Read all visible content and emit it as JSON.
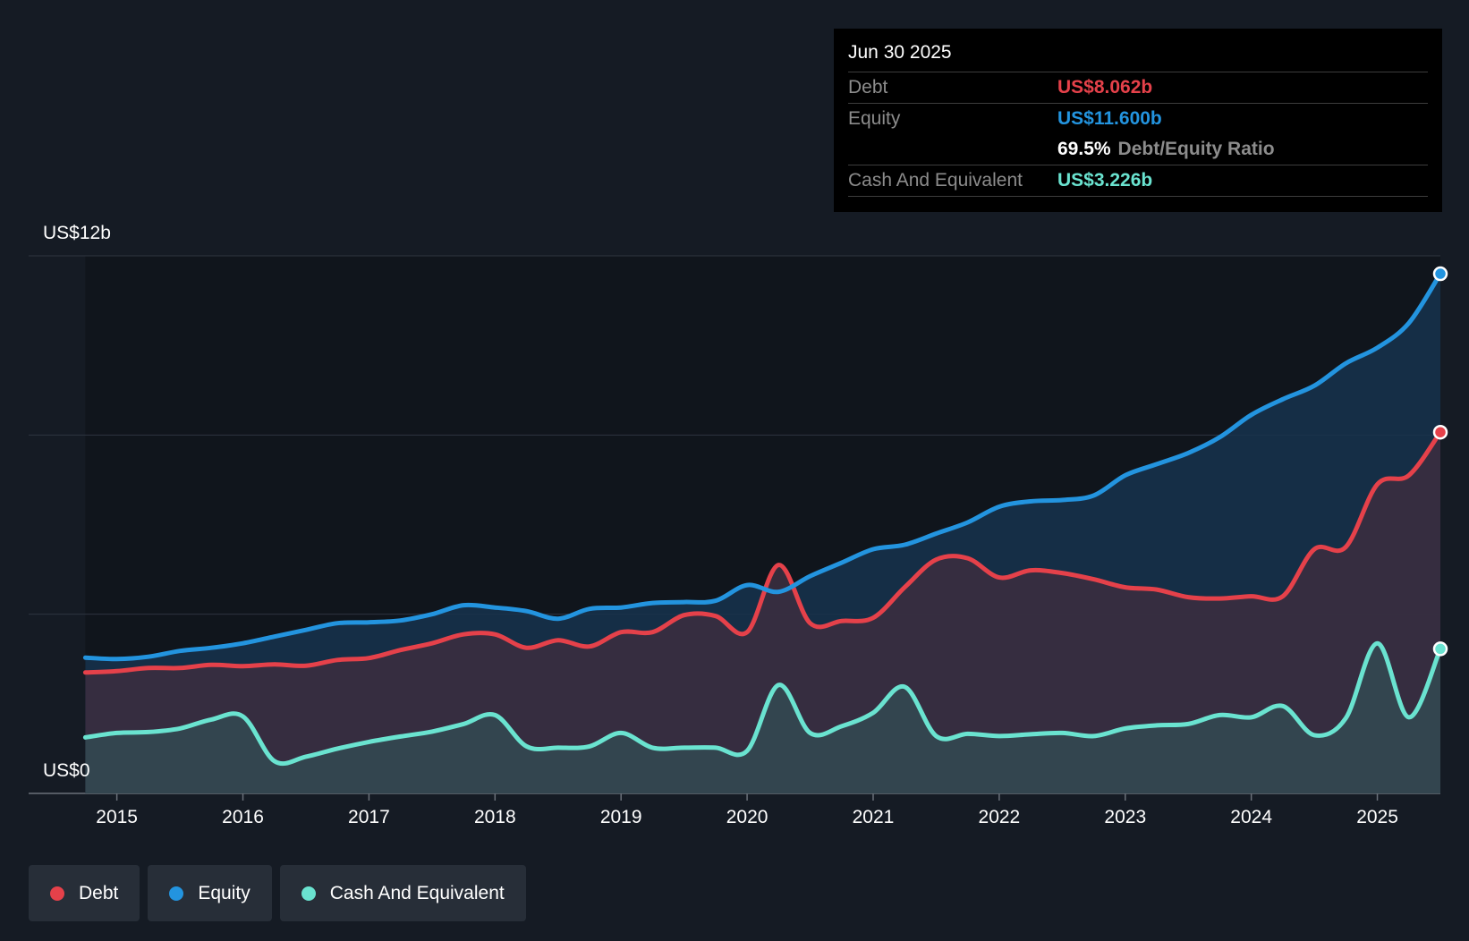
{
  "tooltip": {
    "date": "Jun 30 2025",
    "debt_label": "Debt",
    "debt_value": "US$8.062b",
    "equity_label": "Equity",
    "equity_value": "US$11.600b",
    "ratio_value": "69.5%",
    "ratio_label": "Debt/Equity Ratio",
    "cash_label": "Cash And Equivalent",
    "cash_value": "US$3.226b"
  },
  "legend": [
    {
      "label": "Debt",
      "color": "#e5414a"
    },
    {
      "label": "Equity",
      "color": "#2394df"
    },
    {
      "label": "Cash And Equivalent",
      "color": "#6ae3d0"
    }
  ],
  "chart_data": {
    "type": "area",
    "y_axis_labels": {
      "top": "US$12b",
      "bottom": "US$0"
    },
    "ylim": [
      0,
      12
    ],
    "xlim": [
      2014.3,
      2025.5
    ],
    "x_ticks": [
      "2015",
      "2016",
      "2017",
      "2018",
      "2019",
      "2020",
      "2021",
      "2022",
      "2023",
      "2024",
      "2025"
    ],
    "grid": true,
    "legend_position": "bottom-left",
    "series": [
      {
        "name": "Debt",
        "color": "#e5414a",
        "x": [
          2014.75,
          2015.0,
          2015.25,
          2015.5,
          2015.75,
          2016.0,
          2016.25,
          2016.5,
          2016.75,
          2017.0,
          2017.25,
          2017.5,
          2017.75,
          2018.0,
          2018.25,
          2018.5,
          2018.75,
          2019.0,
          2019.25,
          2019.5,
          2019.75,
          2020.0,
          2020.25,
          2020.5,
          2020.75,
          2021.0,
          2021.25,
          2021.5,
          2021.75,
          2022.0,
          2022.25,
          2022.5,
          2022.75,
          2023.0,
          2023.25,
          2023.5,
          2023.75,
          2024.0,
          2024.25,
          2024.5,
          2024.75,
          2025.0,
          2025.25,
          2025.5
        ],
        "values": [
          2.7,
          2.73,
          2.8,
          2.8,
          2.87,
          2.84,
          2.88,
          2.85,
          2.98,
          3.02,
          3.2,
          3.35,
          3.55,
          3.55,
          3.25,
          3.42,
          3.28,
          3.6,
          3.6,
          3.98,
          3.96,
          3.6,
          5.1,
          3.8,
          3.85,
          3.92,
          4.6,
          5.22,
          5.25,
          4.82,
          4.98,
          4.92,
          4.78,
          4.6,
          4.55,
          4.38,
          4.35,
          4.4,
          4.4,
          5.45,
          5.5,
          6.9,
          7.1,
          8.062
        ]
      },
      {
        "name": "Equity",
        "color": "#2394df",
        "x": [
          2014.75,
          2015.0,
          2015.25,
          2015.5,
          2015.75,
          2016.0,
          2016.25,
          2016.5,
          2016.75,
          2017.0,
          2017.25,
          2017.5,
          2017.75,
          2018.0,
          2018.25,
          2018.5,
          2018.75,
          2019.0,
          2019.25,
          2019.5,
          2019.75,
          2020.0,
          2020.25,
          2020.5,
          2020.75,
          2021.0,
          2021.25,
          2021.5,
          2021.75,
          2022.0,
          2022.25,
          2022.5,
          2022.75,
          2023.0,
          2023.25,
          2023.5,
          2023.75,
          2024.0,
          2024.25,
          2024.5,
          2024.75,
          2025.0,
          2025.25,
          2025.5
        ],
        "values": [
          3.03,
          3.0,
          3.05,
          3.18,
          3.25,
          3.35,
          3.5,
          3.65,
          3.8,
          3.82,
          3.86,
          4.0,
          4.2,
          4.15,
          4.07,
          3.9,
          4.12,
          4.15,
          4.25,
          4.27,
          4.3,
          4.65,
          4.5,
          4.85,
          5.15,
          5.45,
          5.55,
          5.8,
          6.05,
          6.4,
          6.52,
          6.55,
          6.65,
          7.1,
          7.35,
          7.6,
          7.95,
          8.45,
          8.8,
          9.1,
          9.6,
          9.95,
          10.5,
          11.6
        ]
      },
      {
        "name": "Cash And Equivalent",
        "color": "#6ae3d0",
        "x": [
          2014.75,
          2015.0,
          2015.25,
          2015.5,
          2015.75,
          2016.0,
          2016.25,
          2016.5,
          2016.75,
          2017.0,
          2017.25,
          2017.5,
          2017.75,
          2018.0,
          2018.25,
          2018.5,
          2018.75,
          2019.0,
          2019.25,
          2019.5,
          2019.75,
          2020.0,
          2020.25,
          2020.5,
          2020.75,
          2021.0,
          2021.25,
          2021.5,
          2021.75,
          2022.0,
          2022.25,
          2022.5,
          2022.75,
          2023.0,
          2023.25,
          2023.5,
          2023.75,
          2024.0,
          2024.25,
          2024.5,
          2024.75,
          2025.0,
          2025.25,
          2025.5
        ],
        "values": [
          1.25,
          1.35,
          1.37,
          1.45,
          1.65,
          1.72,
          0.72,
          0.82,
          1.0,
          1.15,
          1.27,
          1.38,
          1.55,
          1.75,
          1.05,
          1.02,
          1.05,
          1.35,
          1.02,
          1.02,
          1.02,
          0.95,
          2.42,
          1.35,
          1.5,
          1.8,
          2.38,
          1.28,
          1.33,
          1.28,
          1.32,
          1.35,
          1.28,
          1.45,
          1.52,
          1.55,
          1.75,
          1.7,
          1.95,
          1.3,
          1.68,
          3.35,
          1.7,
          3.226
        ]
      }
    ]
  }
}
